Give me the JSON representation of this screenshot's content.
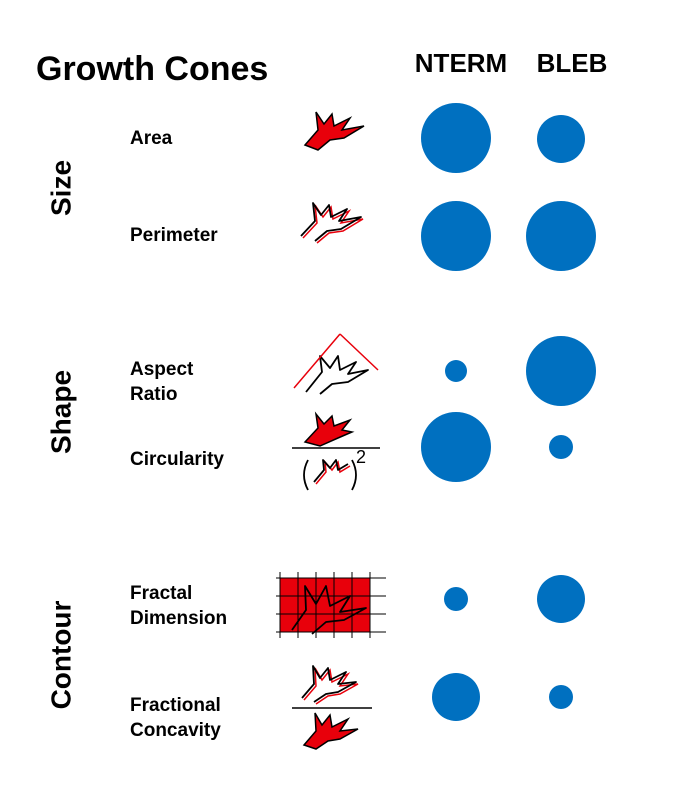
{
  "header": {
    "title": "Growth Cones",
    "columns": [
      "NTERM",
      "BLEB"
    ]
  },
  "groups": [
    {
      "label": "Size",
      "rows": [
        {
          "label": [
            "Area"
          ]
        },
        {
          "label": [
            "Perimeter"
          ]
        }
      ]
    },
    {
      "label": "Shape",
      "rows": [
        {
          "label": [
            "Aspect",
            "Ratio"
          ]
        },
        {
          "label": [
            "Circularity"
          ]
        }
      ]
    },
    {
      "label": "Contour",
      "rows": [
        {
          "label": [
            "Fractal",
            "Dimension"
          ]
        },
        {
          "label": [
            "Fractional",
            "Concavity"
          ]
        }
      ]
    }
  ]
}
